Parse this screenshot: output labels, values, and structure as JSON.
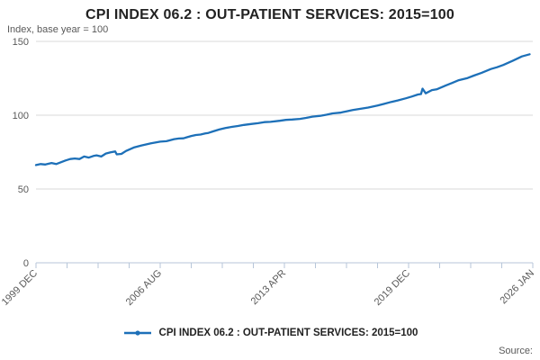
{
  "header": {
    "title": "CPI INDEX 06.2 : OUT-PATIENT SERVICES: 2015=100",
    "subtitle": "Index, base year = 100"
  },
  "legend": {
    "label": "CPI INDEX 06.2 : OUT-PATIENT SERVICES: 2015=100"
  },
  "footer": {
    "source_label": "Source:"
  },
  "colors": {
    "line": "#1d70b8",
    "grid": "#d9d9d9",
    "axis": "#b7c6d9",
    "muted_text": "#595959",
    "title_text": "#222222"
  },
  "chart_data": {
    "type": "line",
    "title": "CPI INDEX 06.2 : OUT-PATIENT SERVICES: 2015=100",
    "subtitle": "Index, base year = 100",
    "x_unit": "months since 1999 DEC",
    "xlim": [
      0,
      320
    ],
    "ylim": [
      0,
      150
    ],
    "grid": "horizontal",
    "legend_position": "bottom-center",
    "y_ticks": [
      0,
      50,
      100,
      150
    ],
    "x_ticks": [
      {
        "m": 0,
        "label": "1999 DEC"
      },
      {
        "m": 20,
        "label": ""
      },
      {
        "m": 40,
        "label": ""
      },
      {
        "m": 60,
        "label": ""
      },
      {
        "m": 80,
        "label": "2006 AUG"
      },
      {
        "m": 100,
        "label": ""
      },
      {
        "m": 120,
        "label": ""
      },
      {
        "m": 140,
        "label": ""
      },
      {
        "m": 160,
        "label": "2013 APR"
      },
      {
        "m": 180,
        "label": ""
      },
      {
        "m": 200,
        "label": ""
      },
      {
        "m": 220,
        "label": ""
      },
      {
        "m": 240,
        "label": "2019 DEC"
      },
      {
        "m": 260,
        "label": ""
      },
      {
        "m": 280,
        "label": ""
      },
      {
        "m": 300,
        "label": ""
      },
      {
        "m": 320,
        "label": "2026 JAN"
      }
    ],
    "series": [
      {
        "name": "CPI INDEX 06.2 : OUT-PATIENT SERVICES: 2015=100",
        "color": "#1d70b8",
        "points": [
          [
            0,
            66.2
          ],
          [
            3,
            66.9
          ],
          [
            6,
            66.6
          ],
          [
            10,
            67.6
          ],
          [
            13,
            66.9
          ],
          [
            16,
            68.1
          ],
          [
            19,
            69.3
          ],
          [
            22,
            70.3
          ],
          [
            25,
            70.7
          ],
          [
            28,
            70.3
          ],
          [
            31,
            72.0
          ],
          [
            34,
            71.3
          ],
          [
            37,
            72.4
          ],
          [
            39,
            72.8
          ],
          [
            42,
            72.0
          ],
          [
            45,
            74.0
          ],
          [
            48,
            74.8
          ],
          [
            51,
            75.4
          ],
          [
            52,
            73.5
          ],
          [
            55,
            73.8
          ],
          [
            58,
            75.8
          ],
          [
            63,
            78.1
          ],
          [
            68,
            79.5
          ],
          [
            74,
            80.9
          ],
          [
            80,
            82.1
          ],
          [
            84,
            82.4
          ],
          [
            86,
            82.9
          ],
          [
            89,
            83.8
          ],
          [
            92,
            84.2
          ],
          [
            95,
            84.3
          ],
          [
            97,
            85.0
          ],
          [
            100,
            85.9
          ],
          [
            103,
            86.6
          ],
          [
            106,
            86.9
          ],
          [
            109,
            87.6
          ],
          [
            111,
            88.0
          ],
          [
            114,
            89.0
          ],
          [
            118,
            90.3
          ],
          [
            122,
            91.3
          ],
          [
            126,
            92.1
          ],
          [
            130,
            92.7
          ],
          [
            134,
            93.4
          ],
          [
            139,
            94.1
          ],
          [
            143,
            94.6
          ],
          [
            147,
            95.3
          ],
          [
            151,
            95.5
          ],
          [
            157,
            96.2
          ],
          [
            161,
            96.8
          ],
          [
            165,
            97.1
          ],
          [
            170,
            97.5
          ],
          [
            174,
            98.2
          ],
          [
            178,
            99.0
          ],
          [
            183,
            99.6
          ],
          [
            187,
            100.3
          ],
          [
            191,
            101.2
          ],
          [
            196,
            101.7
          ],
          [
            200,
            102.6
          ],
          [
            204,
            103.5
          ],
          [
            209,
            104.3
          ],
          [
            214,
            105.2
          ],
          [
            220,
            106.5
          ],
          [
            224,
            107.6
          ],
          [
            229,
            109.0
          ],
          [
            233,
            110.0
          ],
          [
            238,
            111.4
          ],
          [
            242,
            112.6
          ],
          [
            246,
            114.0
          ],
          [
            248,
            114.3
          ],
          [
            249,
            118.0
          ],
          [
            251,
            114.8
          ],
          [
            255,
            117.0
          ],
          [
            258,
            117.5
          ],
          [
            264,
            120.2
          ],
          [
            268,
            121.8
          ],
          [
            272,
            123.6
          ],
          [
            278,
            125.2
          ],
          [
            282,
            126.8
          ],
          [
            287,
            128.7
          ],
          [
            293,
            131.3
          ],
          [
            297,
            132.5
          ],
          [
            301,
            134.0
          ],
          [
            307,
            136.8
          ],
          [
            313,
            139.8
          ],
          [
            318,
            141.3
          ]
        ]
      }
    ]
  }
}
